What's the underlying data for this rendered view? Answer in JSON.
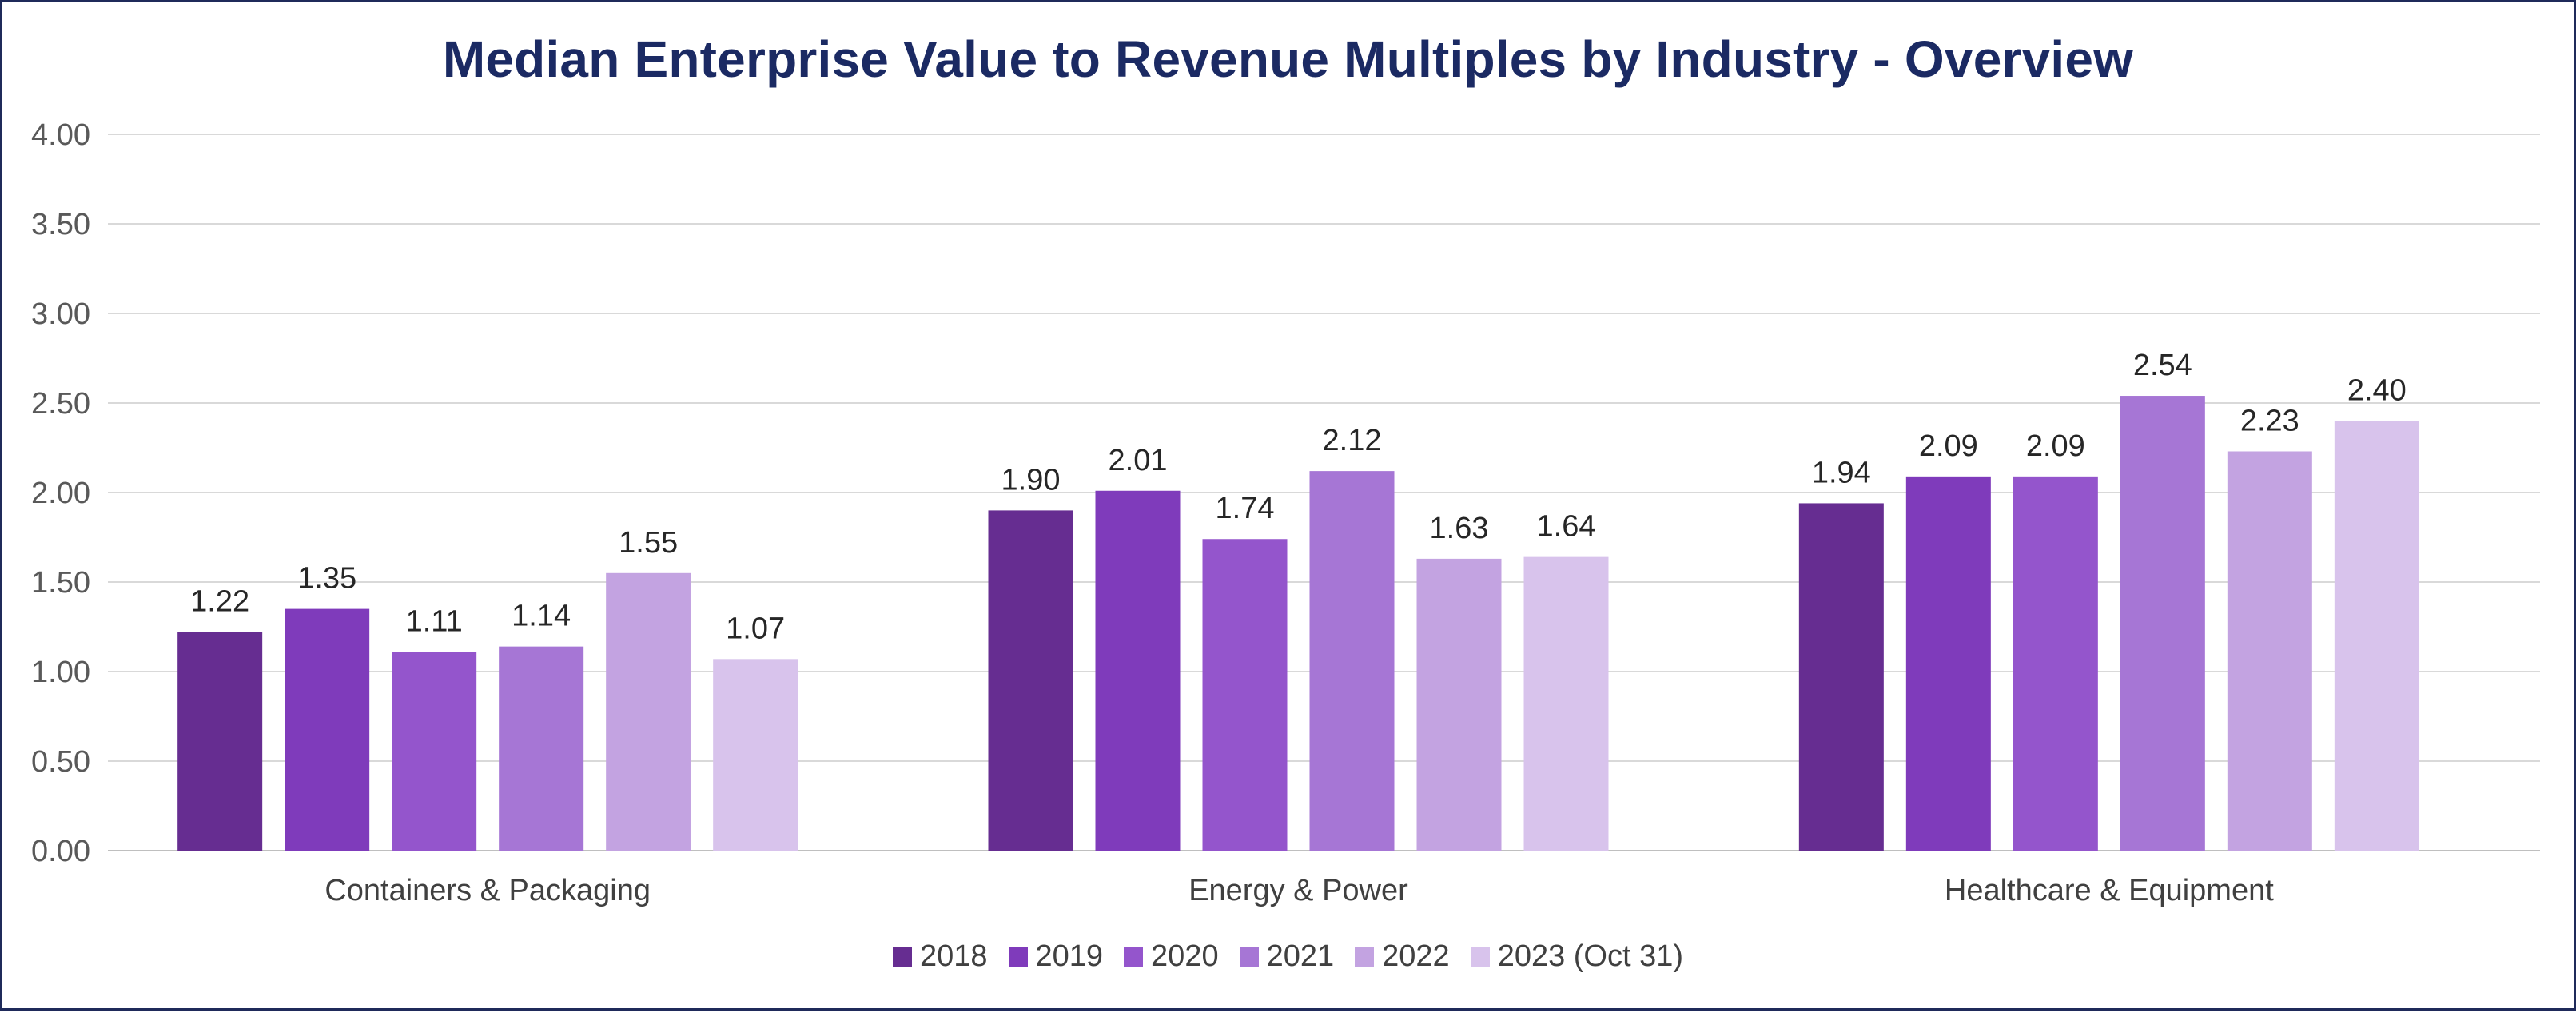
{
  "chart_data": {
    "type": "bar",
    "title": "Median Enterprise Value to Revenue Multiples by Industry - Overview",
    "xlabel": "",
    "ylabel": "",
    "ylim": [
      0,
      4
    ],
    "yticks": [
      "0.00",
      "0.50",
      "1.00",
      "1.50",
      "2.00",
      "2.50",
      "3.00",
      "3.50",
      "4.00"
    ],
    "grid": true,
    "legend_position": "bottom",
    "categories": [
      "Containers & Packaging",
      "Energy & Power",
      "Healthcare & Equipment"
    ],
    "series": [
      {
        "name": "2018",
        "color": "#662d91",
        "values": [
          1.22,
          1.9,
          1.94
        ],
        "labels": [
          "1.22",
          "1.90",
          "1.94"
        ]
      },
      {
        "name": "2019",
        "color": "#7f3bbb",
        "values": [
          1.35,
          2.01,
          2.09
        ],
        "labels": [
          "1.35",
          "2.01",
          "2.09"
        ]
      },
      {
        "name": "2020",
        "color": "#9455cc",
        "values": [
          1.11,
          1.74,
          2.09
        ],
        "labels": [
          "1.11",
          "1.74",
          "2.09"
        ]
      },
      {
        "name": "2021",
        "color": "#a676d5",
        "values": [
          1.14,
          2.12,
          2.54
        ],
        "labels": [
          "1.14",
          "2.12",
          "2.54"
        ]
      },
      {
        "name": "2022",
        "color": "#c3a3e1",
        "values": [
          1.55,
          1.63,
          2.23
        ],
        "labels": [
          "1.55",
          "1.63",
          "2.23"
        ]
      },
      {
        "name": "2023 (Oct 31)",
        "color": "#d8c3ec",
        "values": [
          1.07,
          1.64,
          2.4
        ],
        "labels": [
          "1.07",
          "1.64",
          "2.40"
        ]
      }
    ]
  }
}
